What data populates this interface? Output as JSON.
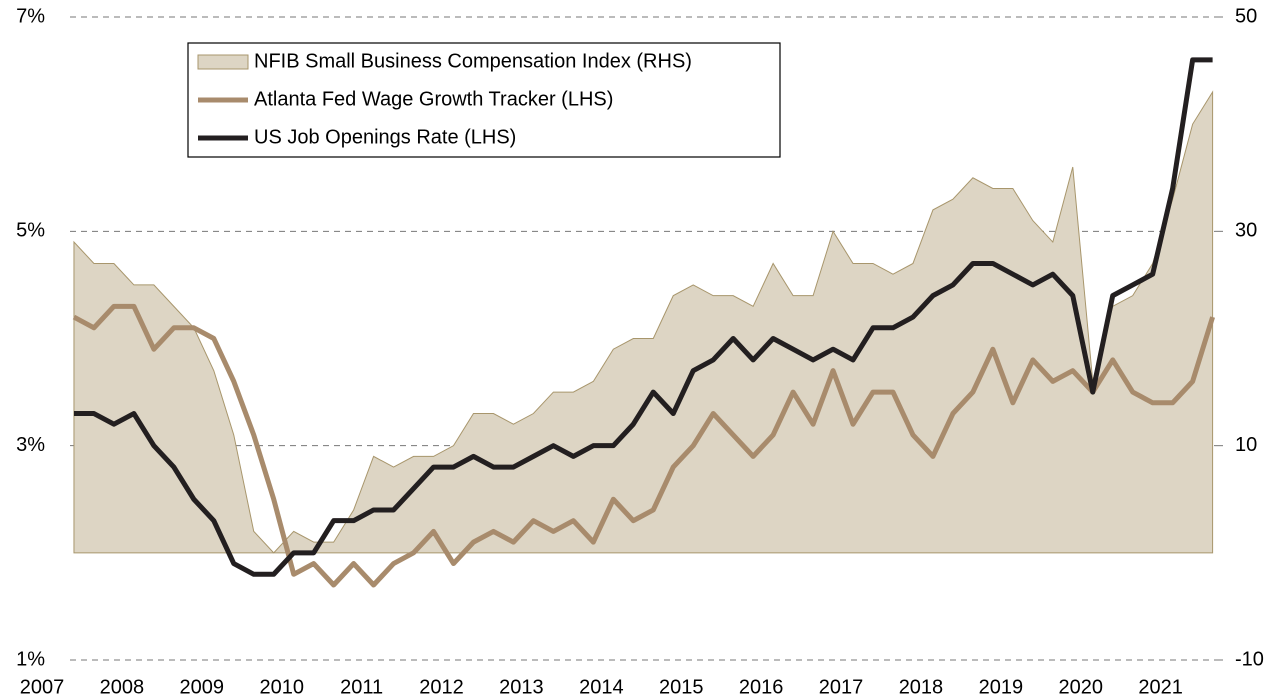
{
  "chart_data": {
    "type": "line",
    "x": [
      2007.4,
      2007.65,
      2007.9,
      2008.15,
      2008.4,
      2008.65,
      2008.9,
      2009.15,
      2009.4,
      2009.65,
      2009.9,
      2010.15,
      2010.4,
      2010.65,
      2010.9,
      2011.15,
      2011.4,
      2011.65,
      2011.9,
      2012.15,
      2012.4,
      2012.65,
      2012.9,
      2013.15,
      2013.4,
      2013.65,
      2013.9,
      2014.15,
      2014.4,
      2014.65,
      2014.9,
      2015.15,
      2015.4,
      2015.65,
      2015.9,
      2016.15,
      2016.4,
      2016.65,
      2016.9,
      2017.15,
      2017.4,
      2017.65,
      2017.9,
      2018.15,
      2018.4,
      2018.65,
      2018.9,
      2019.15,
      2019.4,
      2019.65,
      2019.9,
      2020.15,
      2020.4,
      2020.65,
      2020.9,
      2021.15,
      2021.4,
      2021.65
    ],
    "xlim": [
      2007,
      2021.68
    ],
    "xticks": [
      2007,
      2008,
      2009,
      2010,
      2011,
      2012,
      2013,
      2014,
      2015,
      2016,
      2017,
      2018,
      2019,
      2020,
      2021
    ],
    "ylim": [
      1,
      7
    ],
    "yticks": [
      {
        "value": 1,
        "label": "1%"
      },
      {
        "value": 3,
        "label": "3%"
      },
      {
        "value": 5,
        "label": "5%"
      },
      {
        "value": 7,
        "label": "7%"
      }
    ],
    "y2lim": [
      -10,
      50
    ],
    "y2ticks": [
      -10,
      10,
      30,
      50
    ],
    "grid": true,
    "legend": "upper left",
    "series": [
      {
        "name": "NFIB Small Business Compensation Index (RHS)",
        "kind": "area",
        "axis": "y2",
        "color": "#ddd5c4",
        "edge_color": "#a8966c",
        "values": [
          29,
          27,
          27,
          25,
          25,
          23,
          21,
          17,
          11,
          2,
          0,
          2,
          1,
          1,
          4,
          9,
          8,
          9,
          9,
          10,
          13,
          13,
          12,
          13,
          15,
          15,
          16,
          19,
          20,
          20,
          24,
          25,
          24,
          24,
          23,
          27,
          24,
          24,
          30,
          27,
          27,
          26,
          27,
          32,
          33,
          35,
          34,
          34,
          31,
          29,
          36,
          16,
          23,
          24,
          27,
          33,
          40,
          43
        ]
      },
      {
        "name": "Atlanta Fed Wage Growth Tracker (LHS)",
        "kind": "line",
        "axis": "y",
        "color": "#a88b6c",
        "values": [
          4.2,
          4.1,
          4.3,
          4.3,
          3.9,
          4.1,
          4.1,
          4.0,
          3.6,
          3.1,
          2.5,
          1.8,
          1.9,
          1.7,
          1.9,
          1.7,
          1.9,
          2.0,
          2.2,
          1.9,
          2.1,
          2.2,
          2.1,
          2.3,
          2.2,
          2.3,
          2.1,
          2.5,
          2.3,
          2.4,
          2.8,
          3.0,
          3.3,
          3.1,
          2.9,
          3.1,
          3.5,
          3.2,
          3.7,
          3.2,
          3.5,
          3.5,
          3.1,
          2.9,
          3.3,
          3.5,
          3.9,
          3.4,
          3.8,
          3.6,
          3.7,
          3.5,
          3.8,
          3.5,
          3.4,
          3.4,
          3.6,
          4.2
        ]
      },
      {
        "name": "US Job Openings Rate (LHS)",
        "kind": "line",
        "axis": "y",
        "color": "#231f20",
        "values": [
          3.3,
          3.3,
          3.2,
          3.3,
          3.0,
          2.8,
          2.5,
          2.3,
          1.9,
          1.8,
          1.8,
          2.0,
          2.0,
          2.3,
          2.3,
          2.4,
          2.4,
          2.6,
          2.8,
          2.8,
          2.9,
          2.8,
          2.8,
          2.9,
          3.0,
          2.9,
          3.0,
          3.0,
          3.2,
          3.5,
          3.3,
          3.7,
          3.8,
          4.0,
          3.8,
          4.0,
          3.9,
          3.8,
          3.9,
          3.8,
          4.1,
          4.1,
          4.2,
          4.4,
          4.5,
          4.7,
          4.7,
          4.6,
          4.5,
          4.6,
          4.4,
          3.5,
          4.4,
          4.5,
          4.6,
          5.4,
          6.6,
          6.6
        ]
      }
    ]
  }
}
